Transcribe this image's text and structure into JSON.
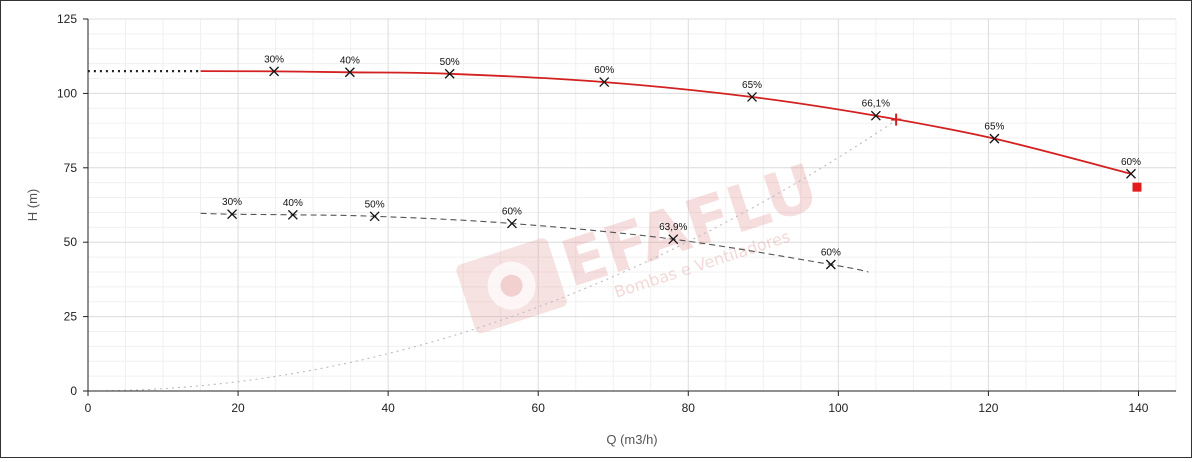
{
  "chart_data": {
    "type": "line",
    "title": "",
    "xlabel": "Q (m3/h)",
    "ylabel": "H (m)",
    "xlim": [
      0,
      145
    ],
    "ylim": [
      0,
      125
    ],
    "xticks": [
      "0",
      "20",
      "40",
      "60",
      "80",
      "100",
      "120",
      "140"
    ],
    "yticks": [
      "0",
      "25",
      "50",
      "75",
      "100",
      "125"
    ],
    "grid": true,
    "watermark": {
      "brand": "EFAFLU",
      "tagline": "Bombas e Ventiladores"
    },
    "series": [
      {
        "color": "#d32020",
        "style": "solid",
        "x": [
          15,
          25,
          35,
          48.2,
          68.8,
          88.5,
          105,
          120.8,
          139
        ],
        "y": [
          107.5,
          107.4,
          107.1,
          106.6,
          103.8,
          98.8,
          92.5,
          84.8,
          73
        ],
        "markers": [
          {
            "x": 24.8,
            "y": 107.4,
            "label": "30%"
          },
          {
            "x": 34.9,
            "y": 107.1,
            "label": "40%"
          },
          {
            "x": 48.2,
            "y": 106.6,
            "label": "50%"
          },
          {
            "x": 68.8,
            "y": 103.8,
            "label": "60%"
          },
          {
            "x": 88.5,
            "y": 98.8,
            "label": "65%"
          },
          {
            "x": 105,
            "y": 92.5,
            "label": "66,1%"
          },
          {
            "x": 120.8,
            "y": 84.8,
            "label": "65%"
          },
          {
            "x": 139,
            "y": 73,
            "label": "60%"
          }
        ]
      },
      {
        "color": "#555555",
        "style": "dashed",
        "x": [
          15,
          19.2,
          27.3,
          38.2,
          56.5,
          78,
          99,
          104
        ],
        "y": [
          59.7,
          59.4,
          59.2,
          58.7,
          56.3,
          51,
          42.5,
          40
        ],
        "markers": [
          {
            "x": 19.2,
            "y": 59.4,
            "label": "30%"
          },
          {
            "x": 27.3,
            "y": 59.2,
            "label": "40%"
          },
          {
            "x": 38.2,
            "y": 58.7,
            "label": "50%"
          },
          {
            "x": 56.5,
            "y": 56.3,
            "label": "60%"
          },
          {
            "x": 78,
            "y": 51,
            "label": "63,9%"
          },
          {
            "x": 99,
            "y": 42.5,
            "label": "60%"
          }
        ]
      },
      {
        "color": "#222222",
        "style": "dotted",
        "x": [
          0,
          15
        ],
        "y": [
          107.5,
          107.5
        ]
      },
      {
        "color": "#bbbbbb",
        "style": "dotted",
        "formula": "y = 91 * (x / 107.7)^2",
        "x_range": [
          0,
          107.7
        ]
      }
    ],
    "operating_point": {
      "x": 107.7,
      "y": 91.2,
      "symbol": "plus",
      "color": "#d32020"
    },
    "extra_marker": {
      "x": 139.8,
      "y": 68.5,
      "symbol": "square",
      "color": "#e31b1b"
    }
  }
}
